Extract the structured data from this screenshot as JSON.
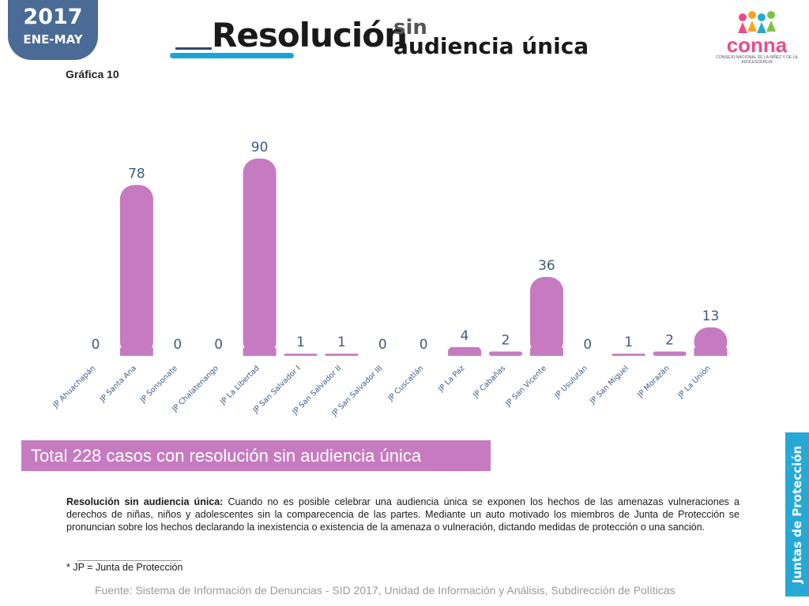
{
  "header": {
    "year": "2017",
    "period": "ENE-MAY",
    "chart_number": "Gráfica 10",
    "title_main": "Resolución",
    "title_sin": "sin",
    "title_sub": "audiencia única"
  },
  "logo": {
    "text": "conna",
    "caption": "CONSEJO NACIONAL DE LA NIÑEZ Y DE LA ADOLESCENCIA"
  },
  "colors": {
    "bar": "#c67bc1",
    "value_label": "#3d5a84",
    "badge": "#4a6b96",
    "side_tab": "#27a9d6"
  },
  "chart_data": {
    "type": "bar",
    "categories": [
      "JP Ahuachapán",
      "JP Santa Ana",
      "JP Sonsonate",
      "JP Chalatenango",
      "JP La Libertad",
      "JP San Salvador I",
      "JP San Salvador II",
      "JP San Salvador III",
      "JP Cuscatlán",
      "JP La Paz",
      "JP Cabañas",
      "JP San Vicente",
      "JP Usulután",
      "JP San Miguel",
      "JP Morazán",
      "JP La Unión"
    ],
    "values": [
      0,
      78,
      0,
      0,
      90,
      1,
      1,
      0,
      0,
      4,
      2,
      36,
      0,
      1,
      2,
      13
    ],
    "ylim": [
      0,
      90
    ],
    "grid": false,
    "legend": false
  },
  "total_banner": "Total 228 casos con resolución sin audiencia única",
  "side_tab": "Juntas de Protección",
  "description": {
    "term": "Resolución sin audiencia única:",
    "text": " Cuando no es posible celebrar una audiencia única se exponen los hechos de las amenazas vulneraciones a derechos de niñas, niños y adolescentes sin la comparecencia de las partes. Mediante un auto motivado los miembros de Junta de Protección se pronuncian sobre los hechos declarando la inexistencia o existencia de la amenaza o vulneración, dictando medidas de protección o una sanción."
  },
  "footnote": "* JP = Junta de Protección",
  "source": "Fuente: Sistema de Información de Denuncias - SID 2017, Unidad de Información y Análisis, Subdirección de Políticas"
}
